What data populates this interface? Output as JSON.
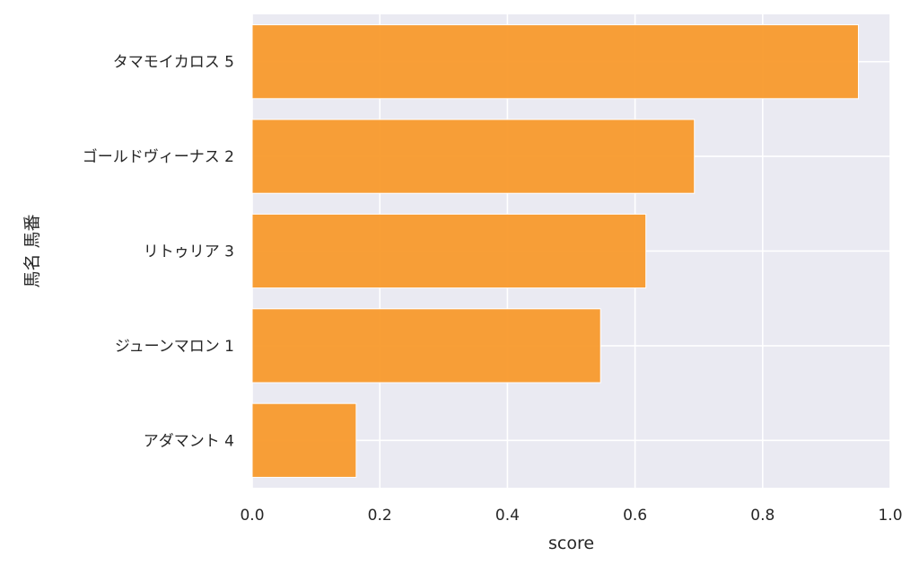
{
  "chart_data": {
    "type": "bar",
    "orientation": "horizontal",
    "categories": [
      "タマモイカロス 5",
      "ゴールドヴィーナス 2",
      "リトゥリア 3",
      "ジューンマロン 1",
      "アダマント 4"
    ],
    "values": [
      0.95,
      0.693,
      0.617,
      0.546,
      0.163
    ],
    "xlabel": "score",
    "ylabel": "馬名 馬番",
    "xlim": [
      0.0,
      1.0
    ],
    "xticks": [
      "0.0",
      "0.2",
      "0.4",
      "0.6",
      "0.8",
      "1.0"
    ],
    "grid": true,
    "legend": "none",
    "colors": {
      "bar": "#f89a2c",
      "background": "#eaeaf2",
      "grid": "#ffffff",
      "text": "#262626"
    }
  }
}
